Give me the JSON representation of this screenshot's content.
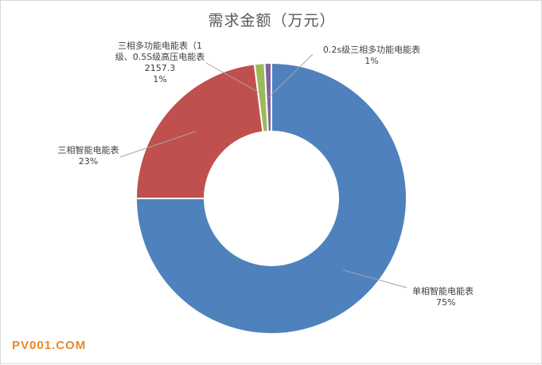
{
  "chart_data": {
    "type": "pie",
    "donut": true,
    "title": "需求金额（万元）",
    "slices": [
      {
        "name": "单相智能电能表",
        "percent_label": "75%",
        "value": 75,
        "color": "#4f81bd",
        "label_lines": [
          "单相智能电能表",
          "75%"
        ]
      },
      {
        "name": "三相智能电能表",
        "percent_label": "23%",
        "value": 23,
        "color": "#c0504d",
        "label_lines": [
          "三相智能电能表",
          "23%"
        ]
      },
      {
        "name": "三相多功能电能表（1级、0.5S级高压电能表",
        "amount_label": "2157.3",
        "percent_label": "1%",
        "value": 1.2,
        "color": "#9bbb59",
        "label_lines": [
          "三相多功能电能表（1",
          "级、0.5S级高压电能表",
          "2157.3",
          "1%"
        ]
      },
      {
        "name": "0.2s级三相多功能电能表",
        "percent_label": "1%",
        "value": 0.8,
        "color": "#8064a2",
        "label_lines": [
          "0.2s级三相多功能电能表",
          "1%"
        ]
      }
    ],
    "legend": "none"
  },
  "watermark": "PV001.COM"
}
